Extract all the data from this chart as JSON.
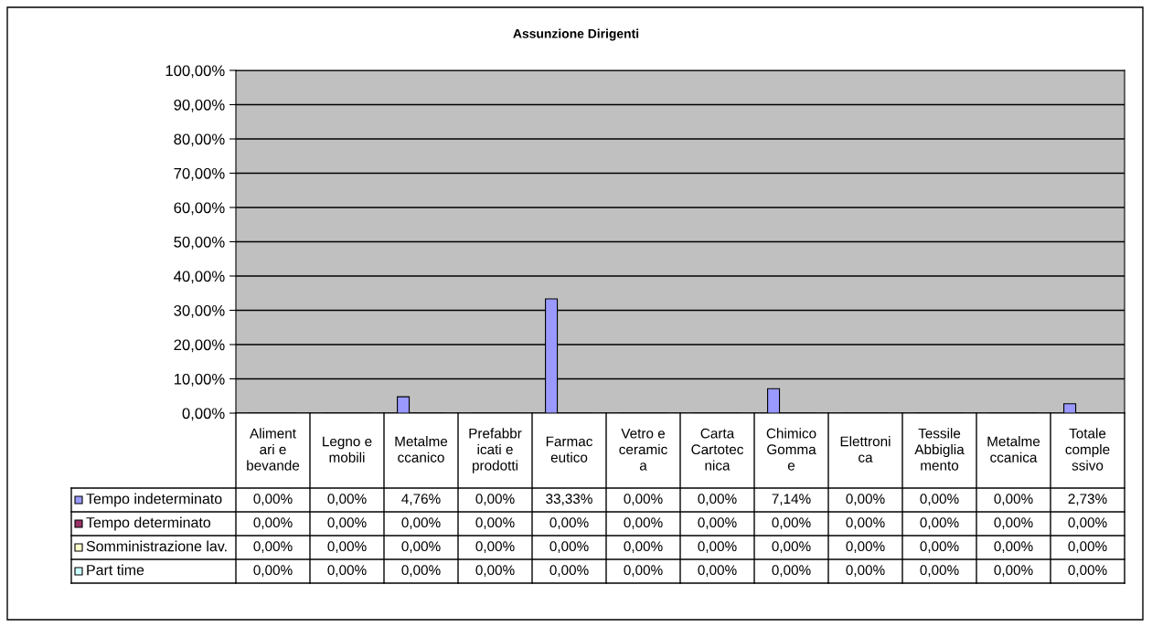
{
  "chart_data": {
    "type": "bar",
    "title": "Assunzione Dirigenti",
    "categories": [
      "Aliment\nari e\nbevande",
      "Legno e\nmobili",
      "Metalme\nccanico",
      "Prefabbr\nicati e\nprodotti",
      "Farmac\neutico",
      "Vetro e\nceramic\na",
      "Carta\nCartotec\nnica",
      "Chimico\nGomma\ne",
      "Elettroni\nca",
      "Tessile\nAbbiglia\nmento",
      "Metalme\nccanica",
      "Totale\ncomple\nssivo"
    ],
    "series": [
      {
        "name": "Tempo indeterminato",
        "color": "#9999ff",
        "values": [
          0,
          0,
          4.76,
          0,
          33.33,
          0,
          0,
          7.14,
          0,
          0,
          0,
          2.73
        ],
        "value_labels": [
          "0,00%",
          "0,00%",
          "4,76%",
          "0,00%",
          "33,33%",
          "0,00%",
          "0,00%",
          "7,14%",
          "0,00%",
          "0,00%",
          "0,00%",
          "2,73%"
        ]
      },
      {
        "name": "Tempo determinato",
        "color": "#993366",
        "values": [
          0,
          0,
          0,
          0,
          0,
          0,
          0,
          0,
          0,
          0,
          0,
          0
        ],
        "value_labels": [
          "0,00%",
          "0,00%",
          "0,00%",
          "0,00%",
          "0,00%",
          "0,00%",
          "0,00%",
          "0,00%",
          "0,00%",
          "0,00%",
          "0,00%",
          "0,00%"
        ]
      },
      {
        "name": "Somministrazione lav.",
        "color": "#ffffcc",
        "values": [
          0,
          0,
          0,
          0,
          0,
          0,
          0,
          0,
          0,
          0,
          0,
          0
        ],
        "value_labels": [
          "0,00%",
          "0,00%",
          "0,00%",
          "0,00%",
          "0,00%",
          "0,00%",
          "0,00%",
          "0,00%",
          "0,00%",
          "0,00%",
          "0,00%",
          "0,00%"
        ]
      },
      {
        "name": "Part time",
        "color": "#ccffff",
        "values": [
          0,
          0,
          0,
          0,
          0,
          0,
          0,
          0,
          0,
          0,
          0,
          0
        ],
        "value_labels": [
          "0,00%",
          "0,00%",
          "0,00%",
          "0,00%",
          "0,00%",
          "0,00%",
          "0,00%",
          "0,00%",
          "0,00%",
          "0,00%",
          "0,00%",
          "0,00%"
        ]
      }
    ],
    "ylim": [
      0,
      100
    ],
    "yticks": [
      {
        "value": 0,
        "label": "0,00%"
      },
      {
        "value": 10,
        "label": "10,00%"
      },
      {
        "value": 20,
        "label": "20,00%"
      },
      {
        "value": 30,
        "label": "30,00%"
      },
      {
        "value": 40,
        "label": "40,00%"
      },
      {
        "value": 50,
        "label": "50,00%"
      },
      {
        "value": 60,
        "label": "60,00%"
      },
      {
        "value": 70,
        "label": "70,00%"
      },
      {
        "value": 80,
        "label": "80,00%"
      },
      {
        "value": 90,
        "label": "90,00%"
      },
      {
        "value": 100,
        "label": "100,00%"
      }
    ],
    "grid": "y",
    "legend": "bottom left"
  }
}
